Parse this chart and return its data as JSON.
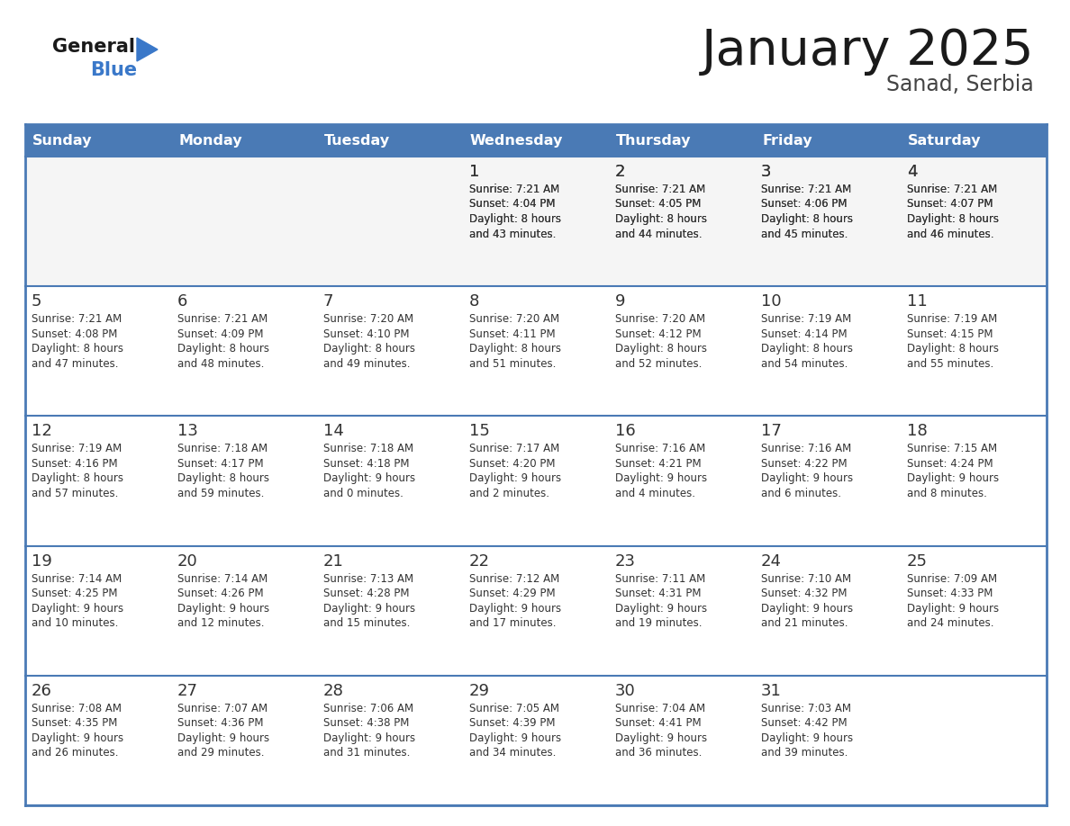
{
  "title": "January 2025",
  "subtitle": "Sanad, Serbia",
  "days_of_week": [
    "Sunday",
    "Monday",
    "Tuesday",
    "Wednesday",
    "Thursday",
    "Friday",
    "Saturday"
  ],
  "header_bg": "#4a7ab5",
  "header_text_color": "#ffffff",
  "cell_bg_light": "#f5f5f5",
  "cell_bg_white": "#ffffff",
  "cell_border_color": "#4a7ab5",
  "text_color": "#333333",
  "title_color": "#1a1a1a",
  "subtitle_color": "#444444",
  "logo_general_color": "#1a1a1a",
  "logo_blue_color": "#3a78c9",
  "calendar_data": [
    [
      null,
      null,
      null,
      {
        "day": 1,
        "sunrise": "7:21 AM",
        "sunset": "4:04 PM",
        "daylight_hours": 8,
        "daylight_minutes": 43
      },
      {
        "day": 2,
        "sunrise": "7:21 AM",
        "sunset": "4:05 PM",
        "daylight_hours": 8,
        "daylight_minutes": 44
      },
      {
        "day": 3,
        "sunrise": "7:21 AM",
        "sunset": "4:06 PM",
        "daylight_hours": 8,
        "daylight_minutes": 45
      },
      {
        "day": 4,
        "sunrise": "7:21 AM",
        "sunset": "4:07 PM",
        "daylight_hours": 8,
        "daylight_minutes": 46
      }
    ],
    [
      {
        "day": 5,
        "sunrise": "7:21 AM",
        "sunset": "4:08 PM",
        "daylight_hours": 8,
        "daylight_minutes": 47
      },
      {
        "day": 6,
        "sunrise": "7:21 AM",
        "sunset": "4:09 PM",
        "daylight_hours": 8,
        "daylight_minutes": 48
      },
      {
        "day": 7,
        "sunrise": "7:20 AM",
        "sunset": "4:10 PM",
        "daylight_hours": 8,
        "daylight_minutes": 49
      },
      {
        "day": 8,
        "sunrise": "7:20 AM",
        "sunset": "4:11 PM",
        "daylight_hours": 8,
        "daylight_minutes": 51
      },
      {
        "day": 9,
        "sunrise": "7:20 AM",
        "sunset": "4:12 PM",
        "daylight_hours": 8,
        "daylight_minutes": 52
      },
      {
        "day": 10,
        "sunrise": "7:19 AM",
        "sunset": "4:14 PM",
        "daylight_hours": 8,
        "daylight_minutes": 54
      },
      {
        "day": 11,
        "sunrise": "7:19 AM",
        "sunset": "4:15 PM",
        "daylight_hours": 8,
        "daylight_minutes": 55
      }
    ],
    [
      {
        "day": 12,
        "sunrise": "7:19 AM",
        "sunset": "4:16 PM",
        "daylight_hours": 8,
        "daylight_minutes": 57
      },
      {
        "day": 13,
        "sunrise": "7:18 AM",
        "sunset": "4:17 PM",
        "daylight_hours": 8,
        "daylight_minutes": 59
      },
      {
        "day": 14,
        "sunrise": "7:18 AM",
        "sunset": "4:18 PM",
        "daylight_hours": 9,
        "daylight_minutes": 0
      },
      {
        "day": 15,
        "sunrise": "7:17 AM",
        "sunset": "4:20 PM",
        "daylight_hours": 9,
        "daylight_minutes": 2
      },
      {
        "day": 16,
        "sunrise": "7:16 AM",
        "sunset": "4:21 PM",
        "daylight_hours": 9,
        "daylight_minutes": 4
      },
      {
        "day": 17,
        "sunrise": "7:16 AM",
        "sunset": "4:22 PM",
        "daylight_hours": 9,
        "daylight_minutes": 6
      },
      {
        "day": 18,
        "sunrise": "7:15 AM",
        "sunset": "4:24 PM",
        "daylight_hours": 9,
        "daylight_minutes": 8
      }
    ],
    [
      {
        "day": 19,
        "sunrise": "7:14 AM",
        "sunset": "4:25 PM",
        "daylight_hours": 9,
        "daylight_minutes": 10
      },
      {
        "day": 20,
        "sunrise": "7:14 AM",
        "sunset": "4:26 PM",
        "daylight_hours": 9,
        "daylight_minutes": 12
      },
      {
        "day": 21,
        "sunrise": "7:13 AM",
        "sunset": "4:28 PM",
        "daylight_hours": 9,
        "daylight_minutes": 15
      },
      {
        "day": 22,
        "sunrise": "7:12 AM",
        "sunset": "4:29 PM",
        "daylight_hours": 9,
        "daylight_minutes": 17
      },
      {
        "day": 23,
        "sunrise": "7:11 AM",
        "sunset": "4:31 PM",
        "daylight_hours": 9,
        "daylight_minutes": 19
      },
      {
        "day": 24,
        "sunrise": "7:10 AM",
        "sunset": "4:32 PM",
        "daylight_hours": 9,
        "daylight_minutes": 21
      },
      {
        "day": 25,
        "sunrise": "7:09 AM",
        "sunset": "4:33 PM",
        "daylight_hours": 9,
        "daylight_minutes": 24
      }
    ],
    [
      {
        "day": 26,
        "sunrise": "7:08 AM",
        "sunset": "4:35 PM",
        "daylight_hours": 9,
        "daylight_minutes": 26
      },
      {
        "day": 27,
        "sunrise": "7:07 AM",
        "sunset": "4:36 PM",
        "daylight_hours": 9,
        "daylight_minutes": 29
      },
      {
        "day": 28,
        "sunrise": "7:06 AM",
        "sunset": "4:38 PM",
        "daylight_hours": 9,
        "daylight_minutes": 31
      },
      {
        "day": 29,
        "sunrise": "7:05 AM",
        "sunset": "4:39 PM",
        "daylight_hours": 9,
        "daylight_minutes": 34
      },
      {
        "day": 30,
        "sunrise": "7:04 AM",
        "sunset": "4:41 PM",
        "daylight_hours": 9,
        "daylight_minutes": 36
      },
      {
        "day": 31,
        "sunrise": "7:03 AM",
        "sunset": "4:42 PM",
        "daylight_hours": 9,
        "daylight_minutes": 39
      },
      null
    ]
  ]
}
